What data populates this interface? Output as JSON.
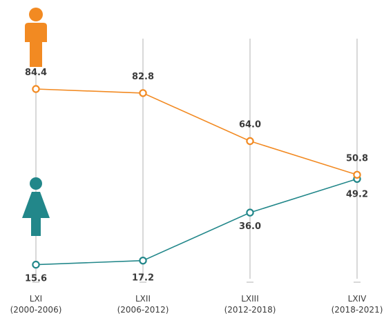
{
  "chart_data": {
    "type": "line",
    "title": "",
    "xlabel": "",
    "ylabel": "",
    "ylim": [
      0,
      100
    ],
    "grid": "vertical",
    "categories": [
      {
        "name": "LXI",
        "years": "(2000-2006)"
      },
      {
        "name": "LXII",
        "years": "(2006-2012)"
      },
      {
        "name": "LXIII",
        "years": "(2012-2018)"
      },
      {
        "name": "LXIV",
        "years": "(2018-2021)"
      }
    ],
    "series": [
      {
        "key": "male",
        "icon": "male-icon",
        "color": "#f28a22",
        "values": [
          84.4,
          82.8,
          64.0,
          50.8
        ],
        "labels": [
          "84.4",
          "82.8",
          "64.0",
          "50.8"
        ]
      },
      {
        "key": "female",
        "icon": "female-icon",
        "color": "#22878a",
        "values": [
          15.6,
          17.2,
          36.0,
          49.2
        ],
        "labels": [
          "15.6",
          "17.2",
          "36.0",
          "49.2"
        ]
      }
    ]
  }
}
